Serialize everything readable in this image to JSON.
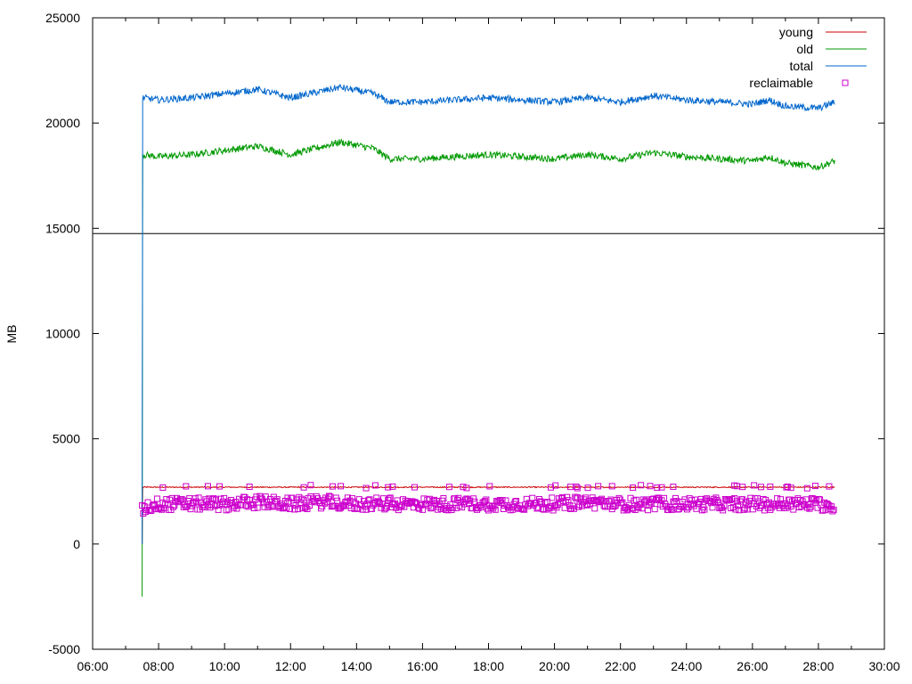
{
  "chart_data": {
    "type": "line",
    "title": "",
    "xlabel": "",
    "ylabel": "MB",
    "xlim": [
      "06:00",
      "30:00"
    ],
    "ylim": [
      -5000,
      25000
    ],
    "x_ticks": [
      "06:00",
      "08:00",
      "10:00",
      "12:00",
      "14:00",
      "16:00",
      "18:00",
      "20:00",
      "22:00",
      "24:00",
      "26:00",
      "28:00",
      "30:00"
    ],
    "y_ticks": [
      -5000,
      0,
      5000,
      10000,
      15000,
      20000,
      25000
    ],
    "grid": false,
    "legend": {
      "position": "top-right",
      "entries": [
        {
          "label": "young",
          "color": "#cc0000",
          "style": "line"
        },
        {
          "label": "old",
          "color": "#009900",
          "style": "line"
        },
        {
          "label": "total",
          "color": "#0066cc",
          "style": "line"
        },
        {
          "label": "reclaimable",
          "color": "#cc00cc",
          "style": "square-marker"
        }
      ]
    },
    "reference_lines": [
      {
        "y": 14750,
        "color": "#000000"
      }
    ],
    "series": [
      {
        "name": "young",
        "color": "#cc0000",
        "x": [
          "07:30",
          "07:31",
          "28:30"
        ],
        "values": [
          0,
          2700,
          2700
        ]
      },
      {
        "name": "old",
        "color": "#009900",
        "x": [
          "07:30",
          "07:31",
          "08:00",
          "09:00",
          "10:00",
          "11:00",
          "12:00",
          "13:30",
          "14:30",
          "15:00",
          "16:00",
          "17:00",
          "18:00",
          "19:00",
          "20:00",
          "21:00",
          "22:00",
          "23:00",
          "24:00",
          "25:00",
          "26:00",
          "26:30",
          "27:00",
          "28:00",
          "28:30"
        ],
        "values": [
          -2500,
          18500,
          18400,
          18500,
          18700,
          18900,
          18500,
          19100,
          18800,
          18300,
          18300,
          18400,
          18500,
          18400,
          18300,
          18500,
          18300,
          18600,
          18400,
          18300,
          18200,
          18400,
          18100,
          17900,
          18200
        ]
      },
      {
        "name": "total",
        "color": "#0066cc",
        "x": [
          "07:30",
          "07:31",
          "08:00",
          "09:00",
          "10:00",
          "11:00",
          "12:00",
          "13:30",
          "14:30",
          "15:00",
          "16:00",
          "17:00",
          "18:00",
          "19:00",
          "20:00",
          "21:00",
          "22:00",
          "23:00",
          "24:00",
          "25:00",
          "26:00",
          "26:30",
          "27:00",
          "28:00",
          "28:30"
        ],
        "values": [
          0,
          21200,
          21100,
          21200,
          21400,
          21600,
          21200,
          21700,
          21400,
          21000,
          21000,
          21100,
          21200,
          21100,
          21000,
          21200,
          21000,
          21300,
          21100,
          21000,
          20900,
          21100,
          20800,
          20700,
          21000
        ]
      },
      {
        "name": "reclaimable",
        "color": "#cc00cc",
        "marker": "square",
        "x": [
          "07:30",
          "08:00",
          "09:00",
          "10:00",
          "11:00",
          "12:00",
          "13:00",
          "14:00",
          "15:00",
          "16:00",
          "17:00",
          "18:00",
          "19:00",
          "20:00",
          "21:00",
          "22:00",
          "23:00",
          "24:00",
          "25:00",
          "26:00",
          "27:00",
          "28:00",
          "28:30"
        ],
        "values": [
          1700,
          1900,
          1900,
          1900,
          2000,
          1900,
          2000,
          1900,
          1900,
          1900,
          1900,
          1900,
          1900,
          1900,
          2000,
          1900,
          1900,
          1900,
          1900,
          1900,
          1900,
          1900,
          1800
        ],
        "spread": [
          1600,
          2800
        ]
      }
    ]
  }
}
